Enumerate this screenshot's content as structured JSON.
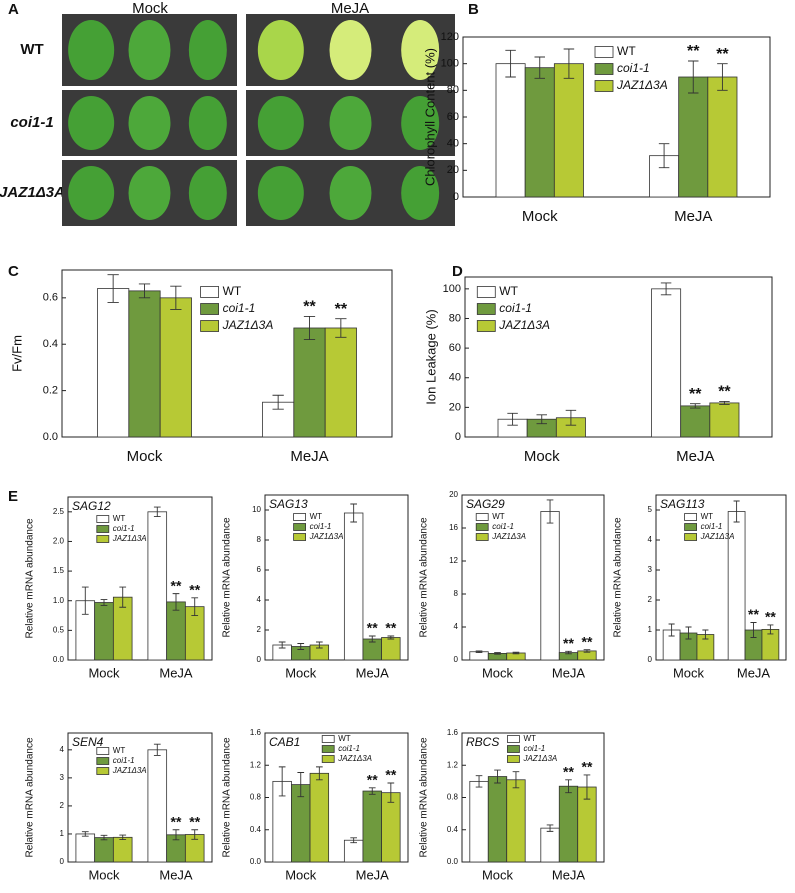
{
  "panel_a": {
    "label": "A",
    "columns": [
      "Mock",
      "MeJA"
    ],
    "rows": [
      "WT",
      "coi1-1",
      "JAZ1Δ3A"
    ]
  },
  "chart_data": [
    {
      "type": "bar",
      "panel": "B",
      "ylabel": "Chlorophyll Content (%)",
      "categories": [
        "Mock",
        "MeJA"
      ],
      "ylim": [
        0,
        120
      ],
      "yticks": [
        0,
        20,
        40,
        60,
        80,
        100,
        120
      ],
      "series": [
        {
          "name": "WT",
          "color": "#ffffff",
          "italic": false,
          "values": [
            100,
            31
          ],
          "errors": [
            10,
            9
          ]
        },
        {
          "name": "coi1-1",
          "color": "#6f9a3e",
          "italic": true,
          "values": [
            97,
            90
          ],
          "errors": [
            8,
            12
          ],
          "significance": [
            null,
            "**"
          ]
        },
        {
          "name": "JAZ1Δ3A",
          "color": "#b7c935",
          "italic": true,
          "values": [
            100,
            90
          ],
          "errors": [
            11,
            10
          ],
          "significance": [
            null,
            "**"
          ]
        }
      ]
    },
    {
      "type": "bar",
      "panel": "C",
      "ylabel": "Fv/Fm",
      "categories": [
        "Mock",
        "MeJA"
      ],
      "ylim": [
        0,
        0.72
      ],
      "yticks": [
        {
          "value": 0,
          "label": "0.0"
        },
        0.2,
        0.4,
        0.6
      ],
      "series": [
        {
          "name": "WT",
          "color": "#ffffff",
          "italic": false,
          "values": [
            0.64,
            0.15
          ],
          "errors": [
            0.06,
            0.03
          ]
        },
        {
          "name": "coi1-1",
          "color": "#6f9a3e",
          "italic": true,
          "values": [
            0.63,
            0.47
          ],
          "errors": [
            0.03,
            0.05
          ],
          "significance": [
            null,
            "**"
          ]
        },
        {
          "name": "JAZ1Δ3A",
          "color": "#b7c935",
          "italic": true,
          "values": [
            0.6,
            0.47
          ],
          "errors": [
            0.05,
            0.04
          ],
          "significance": [
            null,
            "**"
          ]
        }
      ]
    },
    {
      "type": "bar",
      "panel": "D",
      "ylabel": "Ion Leakage (%)",
      "categories": [
        "Mock",
        "MeJA"
      ],
      "ylim": [
        0,
        108
      ],
      "yticks": [
        0,
        20,
        40,
        60,
        80,
        100
      ],
      "series": [
        {
          "name": "WT",
          "color": "#ffffff",
          "italic": false,
          "values": [
            12,
            100
          ],
          "errors": [
            4,
            4
          ]
        },
        {
          "name": "coi1-1",
          "color": "#6f9a3e",
          "italic": true,
          "values": [
            12,
            21
          ],
          "errors": [
            3,
            1.5
          ],
          "significance": [
            null,
            "**"
          ]
        },
        {
          "name": "JAZ1Δ3A",
          "color": "#b7c935",
          "italic": true,
          "values": [
            13,
            23
          ],
          "errors": [
            5,
            1
          ],
          "significance": [
            null,
            "**"
          ]
        }
      ]
    },
    {
      "type": "bar",
      "panel": "E",
      "title": "SAG12",
      "ylabel": "Relative mRNA abundance",
      "categories": [
        "Mock",
        "MeJA"
      ],
      "ylim": [
        0,
        2.75
      ],
      "yticks": [
        {
          "value": 0,
          "label": "0.0"
        },
        0.5,
        {
          "value": 1,
          "label": "1.0"
        },
        1.5,
        {
          "value": 2,
          "label": "2.0"
        },
        2.5
      ],
      "series": [
        {
          "name": "WT",
          "color": "#ffffff",
          "italic": false,
          "values": [
            1.0,
            2.5
          ],
          "errors": [
            0.23,
            0.08
          ]
        },
        {
          "name": "coi1-1",
          "color": "#6f9a3e",
          "italic": true,
          "values": [
            0.97,
            0.98
          ],
          "errors": [
            0.05,
            0.14
          ],
          "significance": [
            null,
            "**"
          ]
        },
        {
          "name": "JAZ1Δ3A",
          "color": "#b7c935",
          "italic": true,
          "values": [
            1.06,
            0.9
          ],
          "errors": [
            0.17,
            0.15
          ],
          "significance": [
            null,
            "**"
          ]
        }
      ]
    },
    {
      "type": "bar",
      "title": "SAG13",
      "ylabel": "Relative mRNA abundance",
      "categories": [
        "Mock",
        "MeJA"
      ],
      "ylim": [
        0,
        11
      ],
      "yticks": [
        0,
        2,
        4,
        6,
        8,
        10
      ],
      "series": [
        {
          "name": "WT",
          "color": "#ffffff",
          "italic": false,
          "values": [
            1.0,
            9.8
          ],
          "errors": [
            0.2,
            0.6
          ]
        },
        {
          "name": "coi1-1",
          "color": "#6f9a3e",
          "italic": true,
          "values": [
            0.9,
            1.4
          ],
          "errors": [
            0.2,
            0.2
          ],
          "significance": [
            null,
            "**"
          ]
        },
        {
          "name": "JAZ1Δ3A",
          "color": "#b7c935",
          "italic": true,
          "values": [
            1.0,
            1.5
          ],
          "errors": [
            0.2,
            0.1
          ],
          "significance": [
            null,
            "**"
          ]
        }
      ]
    },
    {
      "type": "bar",
      "title": "SAG29",
      "ylabel": "Relative mRNA abundance",
      "categories": [
        "Mock",
        "MeJA"
      ],
      "ylim": [
        0,
        20
      ],
      "yticks": [
        0,
        4,
        8,
        12,
        16,
        20
      ],
      "series": [
        {
          "name": "WT",
          "color": "#ffffff",
          "italic": false,
          "values": [
            1.0,
            18
          ],
          "errors": [
            0.1,
            1.4
          ]
        },
        {
          "name": "coi1-1",
          "color": "#6f9a3e",
          "italic": true,
          "values": [
            0.8,
            0.9
          ],
          "errors": [
            0.1,
            0.15
          ],
          "significance": [
            null,
            "**"
          ]
        },
        {
          "name": "JAZ1Δ3A",
          "color": "#b7c935",
          "italic": true,
          "values": [
            0.85,
            1.1
          ],
          "errors": [
            0.1,
            0.15
          ],
          "significance": [
            null,
            "**"
          ]
        }
      ]
    },
    {
      "type": "bar",
      "title": "SAG113",
      "ylabel": "Relative mRNA abundance",
      "categories": [
        "Mock",
        "MeJA"
      ],
      "ylim": [
        0,
        5.5
      ],
      "yticks": [
        0,
        1,
        2,
        3,
        4,
        5
      ],
      "series": [
        {
          "name": "WT",
          "color": "#ffffff",
          "italic": false,
          "values": [
            1.0,
            4.95
          ],
          "errors": [
            0.2,
            0.35
          ]
        },
        {
          "name": "coi1-1",
          "color": "#6f9a3e",
          "italic": true,
          "values": [
            0.9,
            1.0
          ],
          "errors": [
            0.2,
            0.25
          ],
          "significance": [
            null,
            "**"
          ]
        },
        {
          "name": "JAZ1Δ3A",
          "color": "#b7c935",
          "italic": true,
          "values": [
            0.85,
            1.02
          ],
          "errors": [
            0.15,
            0.15
          ],
          "significance": [
            null,
            "**"
          ]
        }
      ]
    },
    {
      "type": "bar",
      "title": "SEN4",
      "ylabel": "Relative mRNA abundance",
      "categories": [
        "Mock",
        "MeJA"
      ],
      "ylim": [
        0,
        4.6
      ],
      "yticks": [
        0,
        1,
        2,
        3,
        4
      ],
      "series": [
        {
          "name": "WT",
          "color": "#ffffff",
          "italic": false,
          "values": [
            1.0,
            4.0
          ],
          "errors": [
            0.08,
            0.2
          ]
        },
        {
          "name": "coi1-1",
          "color": "#6f9a3e",
          "italic": true,
          "values": [
            0.87,
            0.97
          ],
          "errors": [
            0.08,
            0.18
          ],
          "significance": [
            null,
            "**"
          ]
        },
        {
          "name": "JAZ1Δ3A",
          "color": "#b7c935",
          "italic": true,
          "values": [
            0.88,
            0.98
          ],
          "errors": [
            0.08,
            0.17
          ],
          "significance": [
            null,
            "**"
          ]
        }
      ]
    },
    {
      "type": "bar",
      "title": "CAB1",
      "ylabel": "Relative mRNA abundance",
      "categories": [
        "Mock",
        "MeJA"
      ],
      "ylim": [
        0,
        1.6
      ],
      "yticks": [
        {
          "value": 0,
          "label": "0.0"
        },
        0.4,
        0.8,
        1.2,
        1.6
      ],
      "series": [
        {
          "name": "WT",
          "color": "#ffffff",
          "italic": false,
          "values": [
            1.0,
            0.27
          ],
          "errors": [
            0.18,
            0.03
          ]
        },
        {
          "name": "coi1-1",
          "color": "#6f9a3e",
          "italic": true,
          "values": [
            0.96,
            0.88
          ],
          "errors": [
            0.15,
            0.04
          ],
          "significance": [
            null,
            "**"
          ]
        },
        {
          "name": "JAZ1Δ3A",
          "color": "#b7c935",
          "italic": true,
          "values": [
            1.1,
            0.86
          ],
          "errors": [
            0.08,
            0.12
          ],
          "significance": [
            null,
            "**"
          ]
        }
      ]
    },
    {
      "type": "bar",
      "title": "RBCS",
      "ylabel": "Relative mRNA abundance",
      "categories": [
        "Mock",
        "MeJA"
      ],
      "ylim": [
        0,
        1.6
      ],
      "yticks": [
        {
          "value": 0,
          "label": "0.0"
        },
        0.4,
        0.8,
        1.2,
        1.6
      ],
      "series": [
        {
          "name": "WT",
          "color": "#ffffff",
          "italic": false,
          "values": [
            1.0,
            0.42
          ],
          "errors": [
            0.07,
            0.04
          ]
        },
        {
          "name": "coi1-1",
          "color": "#6f9a3e",
          "italic": true,
          "values": [
            1.06,
            0.94
          ],
          "errors": [
            0.08,
            0.08
          ],
          "significance": [
            null,
            "**"
          ]
        },
        {
          "name": "JAZ1Δ3A",
          "color": "#b7c935",
          "italic": true,
          "values": [
            1.02,
            0.93
          ],
          "errors": [
            0.1,
            0.15
          ],
          "significance": [
            null,
            "**"
          ]
        }
      ]
    }
  ]
}
